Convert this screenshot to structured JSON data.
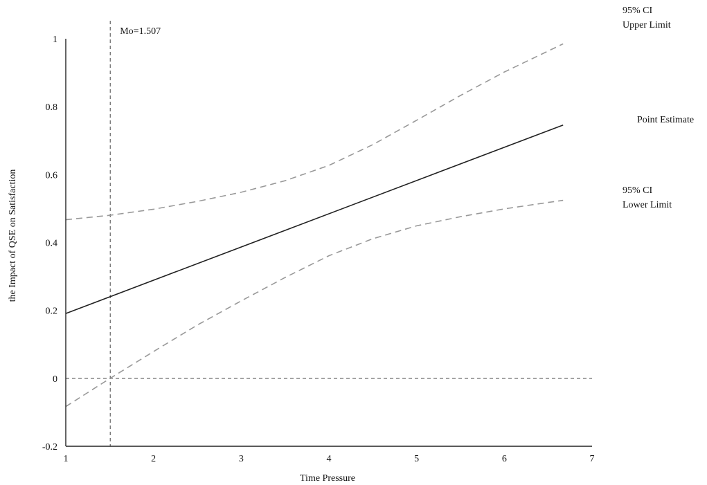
{
  "chart_data": {
    "type": "line",
    "title": "",
    "xlabel": "Time Pressure",
    "ylabel": "the Impact of QSE on Satisfaction",
    "xlim": [
      1,
      7
    ],
    "ylim": [
      -0.2,
      1
    ],
    "x_ticks": [
      "1",
      "2",
      "3",
      "4",
      "5",
      "6",
      "7"
    ],
    "y_ticks": [
      "-0.2",
      "0",
      "0.2",
      "0.4",
      "0.6",
      "0.8",
      "1"
    ],
    "grid": false,
    "reference_lines": {
      "vertical_x": 1.507,
      "vertical_label": "Mo=1.507",
      "horizontal_y": 0
    },
    "series": [
      {
        "name": "95% CI Upper Limit",
        "label_lines": [
          "95% CI",
          "Upper Limit"
        ],
        "style": "dashed",
        "color": "#999999",
        "x": [
          1,
          1.5,
          2,
          2.5,
          3,
          3.5,
          4,
          4.5,
          5,
          5.5,
          6,
          6.5,
          6.67
        ],
        "y": [
          0.467,
          0.48,
          0.498,
          0.521,
          0.548,
          0.582,
          0.627,
          0.688,
          0.76,
          0.833,
          0.902,
          0.964,
          0.985
        ]
      },
      {
        "name": "Point Estimate",
        "label_lines": [
          "Point Estimate"
        ],
        "style": "solid",
        "color": "#222222",
        "x": [
          1,
          6.67
        ],
        "y": [
          0.191,
          0.746
        ]
      },
      {
        "name": "95% CI Lower Limit",
        "label_lines": [
          "95% CI",
          "Lower Limit"
        ],
        "style": "dashed",
        "color": "#999999",
        "x": [
          1,
          1.5,
          2,
          2.5,
          3,
          3.5,
          4,
          4.5,
          5,
          5.5,
          6,
          6.5,
          6.67
        ],
        "y": [
          -0.083,
          -0.001,
          0.079,
          0.157,
          0.228,
          0.297,
          0.361,
          0.411,
          0.449,
          0.476,
          0.499,
          0.518,
          0.524
        ]
      }
    ]
  }
}
